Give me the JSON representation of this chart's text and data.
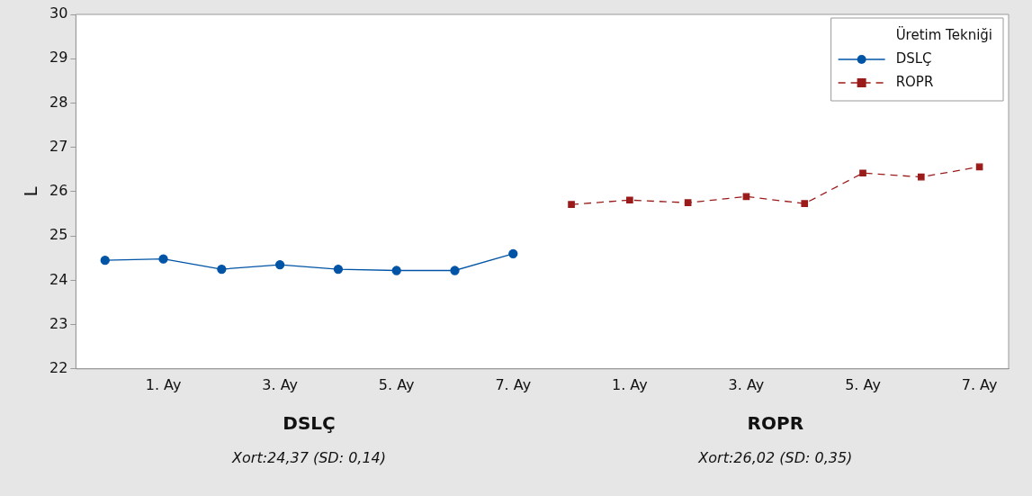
{
  "chart_data": {
    "type": "line",
    "ylabel": "L",
    "legend_title": "Üretim Tekniği",
    "legend": "top right",
    "grid": false,
    "categories": [
      null,
      "1. Ay",
      null,
      "3. Ay",
      null,
      "5. Ay",
      null,
      "7. Ay",
      null,
      "1. Ay",
      null,
      "3. Ay",
      null,
      "5. Ay",
      null,
      "7. Ay"
    ],
    "ylim": [
      22,
      30
    ],
    "yticks": [
      22,
      23,
      24,
      25,
      26,
      27,
      28,
      29,
      30
    ],
    "series": [
      {
        "name": "DSLÇ",
        "color": "#0054a6",
        "marker": "circle",
        "line_style": "solid",
        "values": [
          24.45,
          24.48,
          24.25,
          24.35,
          24.25,
          24.22,
          24.22,
          24.6,
          null,
          null,
          null,
          null,
          null,
          null,
          null,
          null
        ]
      },
      {
        "name": "ROPR",
        "color": "#9b1b1b",
        "marker": "square",
        "line_style": "dashed",
        "values": [
          null,
          null,
          null,
          null,
          null,
          null,
          null,
          null,
          25.71,
          25.81,
          25.75,
          25.89,
          25.73,
          26.42,
          26.33,
          26.56
        ]
      }
    ],
    "annotations": [
      "DSLÇ",
      "Xort:24,37 (SD: 0,14)",
      "ROPR",
      "Xort:26,02 (SD: 0,35)"
    ]
  }
}
